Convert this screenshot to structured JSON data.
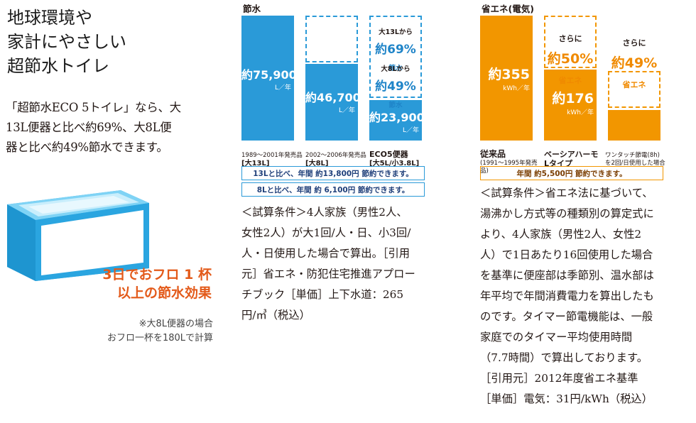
{
  "left": {
    "headline": "地球環境や\n家計にやさしい\n超節水トイレ",
    "intro": "「超節水ECO 5トイレ」なら、大\n13L便器と比べ約69%、大8L便\n器と比べ約49%節水できます。",
    "bath_claim": "3日でおフロ 1 杯\n以上の節水効果",
    "bath_note": "※大8L便器の場合\nおフロ一杯を180Lで計算"
  },
  "water_chart": {
    "title": "節水",
    "bars": [
      {
        "value_text": "約75,900",
        "unit": "L／年",
        "years": "1989〜2001年発売品",
        "label": "[大13L]"
      },
      {
        "value_text": "約46,700",
        "unit": "L／年",
        "years": "2002〜2006年発売品",
        "label": "[大8L]"
      },
      {
        "value_text": "約23,900",
        "unit": "L／年",
        "years": "ECO5便器",
        "label": "[大5L/小3.8L]"
      }
    ],
    "claims": [
      {
        "lead": "大13Lから",
        "pct": "約69%",
        "tail": "節水"
      },
      {
        "lead": "大8Lから",
        "pct": "約49%",
        "tail": "節水"
      }
    ],
    "notes": [
      {
        "text": "13Lと比べ、年間 約13,800円 節約できます。"
      },
      {
        "text": "8Lと比べ、年間 約 6,100円 節約できます。"
      }
    ],
    "conditions": [
      "＜試算条件＞4人家族（男性2人、",
      "女性2人）が大1回/人・日、小3回/",
      "人・日使用した場合で算出。［引用",
      "元］省エネ・防犯住宅推進アプロー",
      "チブック［単価］上下水道：265",
      "円/㎥（税込）"
    ]
  },
  "energy_chart": {
    "title": "省エネ(電気)",
    "bars": [
      {
        "value_text": "約355",
        "unit": "kWh／年",
        "label": "従来品",
        "sub": "(1991〜1995年発売品)"
      },
      {
        "value_text": "約176",
        "unit": "kWh／年",
        "label": "ベーシアハーモ",
        "sub": "Lタイプ"
      },
      {
        "value_text": "",
        "unit": "",
        "label": "ワンタッチ節電(8h)",
        "sub": "を2回/日使用した場合"
      }
    ],
    "claims": [
      {
        "lead": "さらに",
        "pct": "約50%",
        "tail": "省エネ"
      },
      {
        "lead": "さらに",
        "pct": "約49%",
        "tail": "省エネ"
      }
    ],
    "note": "年間 約5,500円 節約できます。",
    "conditions": [
      "＜試算条件＞省エネ法に基づいて、",
      "湯沸かし方式等の種類別の算定式に",
      "より、4人家族（男性2人、女性2",
      "人）で1日あたり16回使用した場合",
      "を基準に便座部は季節別、温水部は",
      "年平均で年間消費電力を算出したも",
      "のです。タイマー節電機能は、一般",
      "家庭でのタイマー平均使用時間",
      "（7.7時間）で算出しております。",
      "［引用元］2012年度省エネ基準",
      "［単価］電気：31円/kWh（税込）"
    ]
  },
  "colors": {
    "water": "#2a9ad8",
    "energy": "#f29600",
    "accent_red": "#e35a1a"
  }
}
